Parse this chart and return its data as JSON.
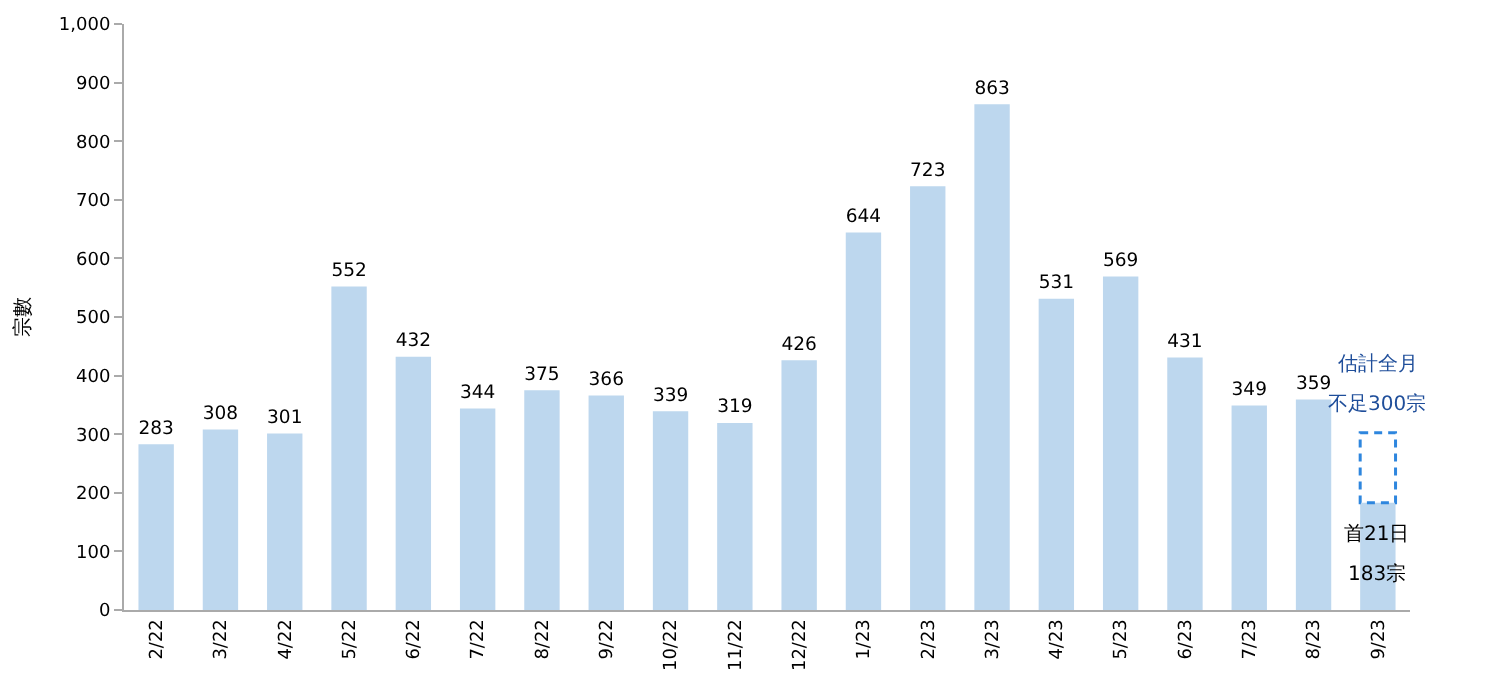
{
  "chart_data": {
    "type": "bar",
    "ylabel": "宗數",
    "categories": [
      "2/22",
      "3/22",
      "4/22",
      "5/22",
      "6/22",
      "7/22",
      "8/22",
      "9/22",
      "10/22",
      "11/22",
      "12/22",
      "1/23",
      "2/23",
      "3/23",
      "4/23",
      "5/23",
      "6/23",
      "7/23",
      "8/23",
      "9/23"
    ],
    "values": [
      283,
      308,
      301,
      552,
      432,
      344,
      375,
      366,
      339,
      319,
      426,
      644,
      723,
      863,
      531,
      569,
      431,
      349,
      359,
      183
    ],
    "value_labels": [
      "283",
      "308",
      "301",
      "552",
      "432",
      "344",
      "375",
      "366",
      "339",
      "319",
      "426",
      "644",
      "723",
      "863",
      "531",
      "569",
      "431",
      "349",
      "359",
      null
    ],
    "color": "#bdd7ee",
    "ylim": [
      0,
      1000
    ],
    "yticks": [
      0,
      100,
      200,
      300,
      400,
      500,
      600,
      700,
      800,
      900,
      {
        "value": 1000,
        "label": "1,000"
      }
    ],
    "grid": false,
    "legend": false,
    "annotations": [
      "估計全月",
      "不足300宗",
      "首21日",
      "183宗"
    ]
  }
}
